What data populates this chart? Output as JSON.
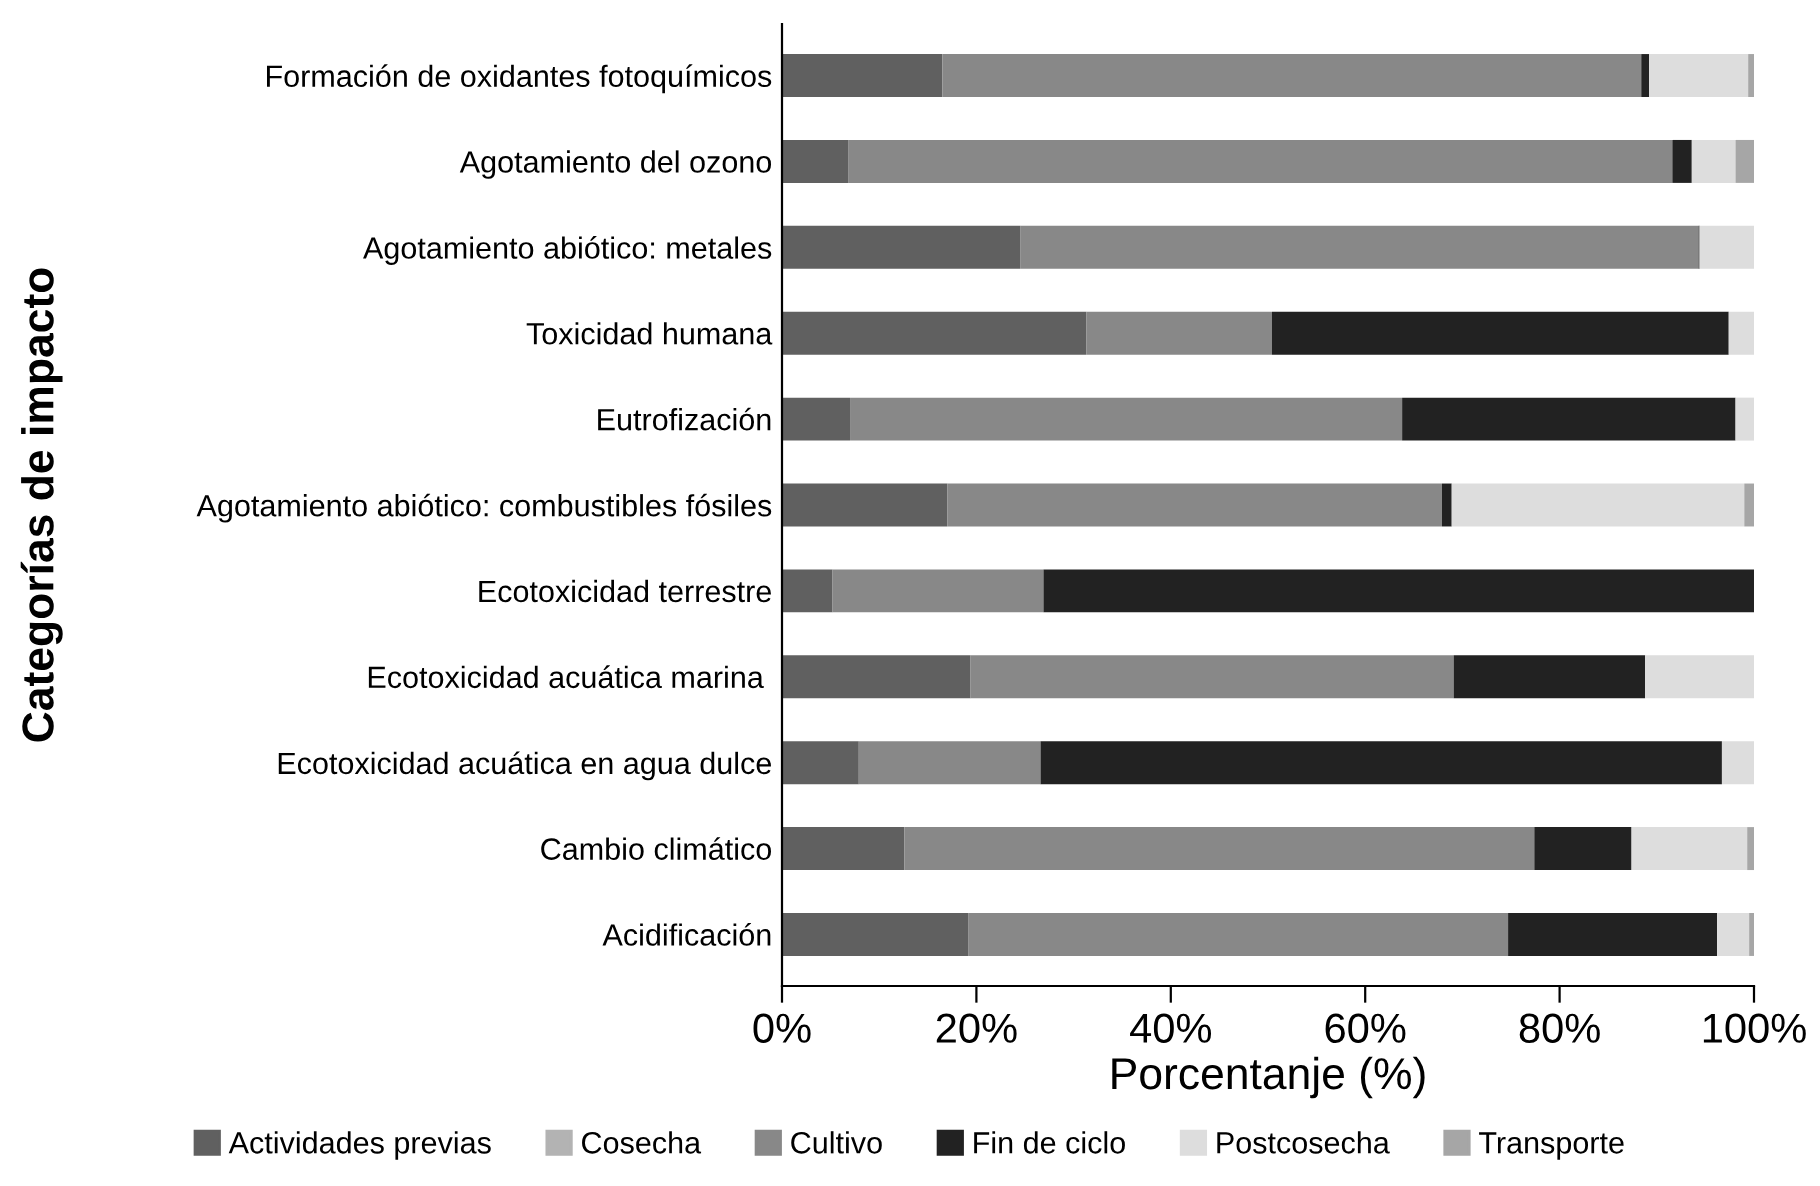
{
  "chart_data": {
    "type": "bar",
    "orientation": "horizontal",
    "stacked": true,
    "xlabel": "Porcentanje (%)",
    "ylabel": "Categorías de impacto",
    "categories": [
      "Formación de oxidantes fotoquímicos",
      "Agotamiento del ozono",
      "Agotamiento abiótico: metales",
      "Toxicidad humana",
      "Eutrofización",
      "Agotamiento abiótico: combustibles fósiles",
      "Ecotoxicidad terrestre",
      "Ecotoxicidad acuática marina ",
      "Ecotoxicidad acuática en agua dulce",
      "Cambio climático",
      "Acidificación"
    ],
    "series": [
      {
        "name": "Actividades previas",
        "color": "#606060",
        "values": [
          16.5,
          6.8,
          24.5,
          31.3,
          7.0,
          17.0,
          5.2,
          19.4,
          7.9,
          12.6,
          19.2
        ]
      },
      {
        "name": "Cosecha",
        "color": "#b3b3b3",
        "values": [
          0,
          0,
          0,
          0,
          0,
          0,
          0,
          0,
          0,
          0,
          0
        ]
      },
      {
        "name": "Cultivo",
        "color": "#888888",
        "values": [
          71.9,
          84.8,
          69.8,
          19.1,
          56.8,
          50.9,
          21.7,
          49.7,
          18.7,
          64.8,
          55.5
        ]
      },
      {
        "name": "Fin de ciclo",
        "color": "#222222",
        "values": [
          0.8,
          2.0,
          0.1,
          47.0,
          34.3,
          1.0,
          73.1,
          19.7,
          70.1,
          10.0,
          21.5
        ]
      },
      {
        "name": "Postcosecha",
        "color": "#dddddd",
        "values": [
          10.2,
          4.5,
          5.6,
          2.6,
          1.9,
          30.1,
          0,
          11.2,
          3.3,
          11.9,
          3.3
        ]
      },
      {
        "name": "Transporte",
        "color": "#a6a6a6",
        "values": [
          0.6,
          1.9,
          0,
          0,
          0,
          1.0,
          0,
          0,
          0,
          0.7,
          0.5
        ]
      }
    ],
    "xlim": [
      0,
      100
    ],
    "xticks": [
      {
        "value": 0,
        "label": "0%"
      },
      {
        "value": 20,
        "label": "20%"
      },
      {
        "value": 40,
        "label": "40%"
      },
      {
        "value": 60,
        "label": "60%"
      },
      {
        "value": 80,
        "label": "80%"
      },
      {
        "value": 100,
        "label": "100%"
      }
    ],
    "grid": false,
    "legend": "bottom"
  }
}
